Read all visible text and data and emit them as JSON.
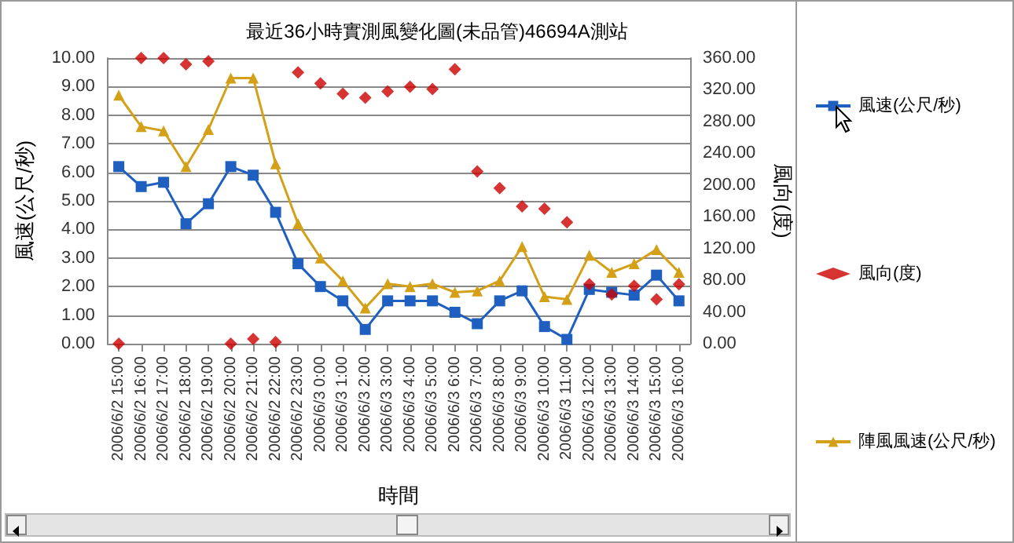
{
  "chart_data": {
    "type": "line",
    "title": "最近36小時實測風變化圖(未品管)46694A測站",
    "xlabel": "時間",
    "ylabel": "風速(公尺/秒)",
    "y2label": "風向(度)",
    "categories": [
      "2006/6/2 15:00",
      "2006/6/2 16:00",
      "2006/6/2 17:00",
      "2006/6/2 18:00",
      "2006/6/2 19:00",
      "2006/6/2 20:00",
      "2006/6/2 21:00",
      "2006/6/2 22:00",
      "2006/6/2 23:00",
      "2006/6/3 0:00",
      "2006/6/3 1:00",
      "2006/6/3 2:00",
      "2006/6/3 3:00",
      "2006/6/3 4:00",
      "2006/6/3 5:00",
      "2006/6/3 6:00",
      "2006/6/3 7:00",
      "2006/6/3 8:00",
      "2006/6/3 9:00",
      "2006/6/3 10:00",
      "2006/6/3 11:00",
      "2006/6/3 12:00",
      "2006/6/3 13:00",
      "2006/6/3 14:00",
      "2006/6/3 15:00",
      "2006/6/3 16:00"
    ],
    "series": [
      {
        "name": "風速(公尺/秒)",
        "marker": "square",
        "color": "#1f5fbf",
        "values": [
          6.2,
          5.5,
          5.65,
          4.2,
          4.9,
          6.2,
          5.9,
          4.6,
          2.8,
          2.0,
          1.5,
          0.5,
          1.5,
          1.5,
          1.5,
          1.1,
          0.7,
          1.5,
          1.85,
          0.6,
          0.15,
          1.9,
          1.8,
          1.7,
          2.4,
          1.5
        ]
      },
      {
        "name": "風向(度)",
        "type": "scatter",
        "marker": "diamond",
        "axis": "y2",
        "color": "#cc0000",
        "values": [
          0,
          360,
          360,
          352,
          356,
          0,
          6,
          2,
          342,
          328,
          315,
          310,
          318,
          324,
          321,
          346,
          217,
          196,
          173,
          170,
          153,
          75,
          62,
          73,
          56,
          75
        ]
      },
      {
        "name": "陣風風速(公尺/秒)",
        "marker": "triangle",
        "color": "#d4a017",
        "values": [
          8.7,
          7.6,
          7.45,
          6.2,
          7.5,
          9.3,
          9.3,
          6.3,
          4.2,
          3.0,
          2.2,
          1.25,
          2.1,
          2.0,
          2.1,
          1.8,
          1.85,
          2.2,
          3.4,
          1.65,
          1.55,
          3.1,
          2.5,
          2.8,
          3.3,
          2.5
        ]
      }
    ],
    "ylim": [
      0,
      10
    ],
    "yticks": [
      {
        "value": 0,
        "label": "0.00"
      },
      {
        "value": 1,
        "label": "1.00"
      },
      {
        "value": 2,
        "label": "2.00"
      },
      {
        "value": 3,
        "label": "3.00"
      },
      {
        "value": 4,
        "label": "4.00"
      },
      {
        "value": 5,
        "label": "5.00"
      },
      {
        "value": 6,
        "label": "6.00"
      },
      {
        "value": 7,
        "label": "7.00"
      },
      {
        "value": 8,
        "label": "8.00"
      },
      {
        "value": 9,
        "label": "9.00"
      },
      {
        "value": 10,
        "label": "10.00"
      }
    ],
    "y2lim": [
      0,
      360
    ],
    "y2ticks": [
      {
        "value": 0,
        "label": "0.00"
      },
      {
        "value": 40,
        "label": "40.00"
      },
      {
        "value": 80,
        "label": "80.00"
      },
      {
        "value": 120,
        "label": "120.00"
      },
      {
        "value": 160,
        "label": "160.00"
      },
      {
        "value": 200,
        "label": "200.00"
      },
      {
        "value": 240,
        "label": "240.00"
      },
      {
        "value": 280,
        "label": "280.00"
      },
      {
        "value": 320,
        "label": "320.00"
      },
      {
        "value": 360,
        "label": "360.00"
      }
    ],
    "grid": "y",
    "legend": "right"
  }
}
